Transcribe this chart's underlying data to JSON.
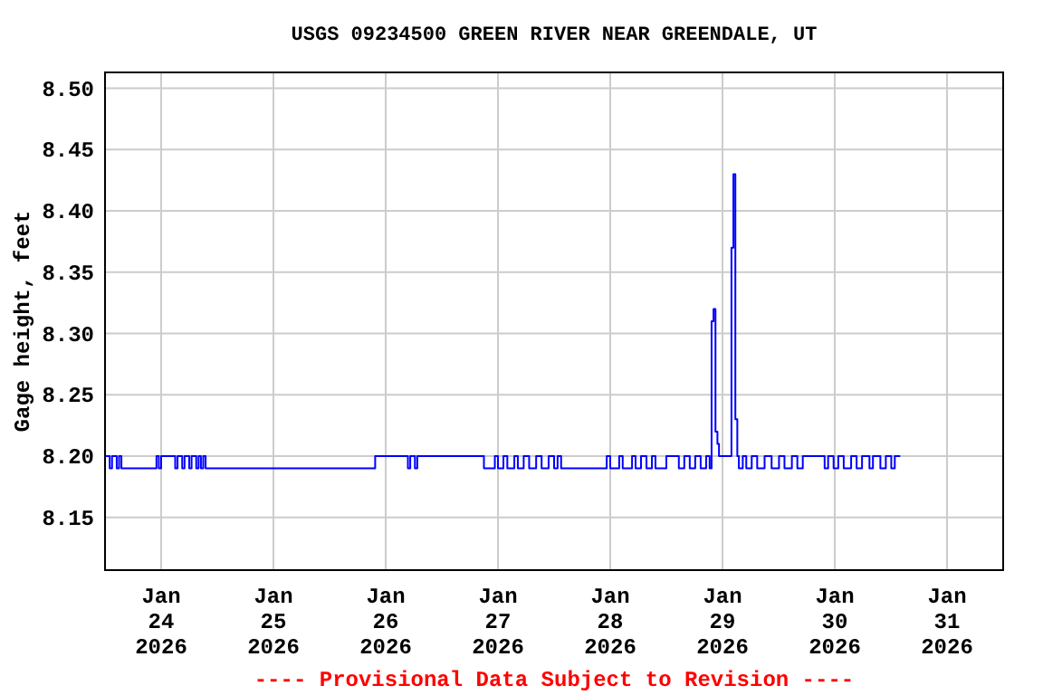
{
  "chart_data": {
    "type": "step",
    "title": "USGS 09234500 GREEN RIVER NEAR GREENDALE, UT",
    "ylabel": "Gage height, feet",
    "annotations": [
      "---- Provisional Data Subject to Revision ----"
    ],
    "xlim": [
      "2026-01-23T12:00",
      "2026-01-31T12:00"
    ],
    "xticks": [
      {
        "value": "2026-01-24",
        "label": "Jan\n24\n2026"
      },
      {
        "value": "2026-01-25",
        "label": "Jan\n25\n2026"
      },
      {
        "value": "2026-01-26",
        "label": "Jan\n26\n2026"
      },
      {
        "value": "2026-01-27",
        "label": "Jan\n27\n2026"
      },
      {
        "value": "2026-01-28",
        "label": "Jan\n28\n2026"
      },
      {
        "value": "2026-01-29",
        "label": "Jan\n29\n2026"
      },
      {
        "value": "2026-01-30",
        "label": "Jan\n30\n2026"
      },
      {
        "value": "2026-01-31",
        "label": "Jan\n31\n2026"
      }
    ],
    "ylim": [
      8.107,
      8.513
    ],
    "yticks": [
      {
        "value": 8.15,
        "label": "8.15"
      },
      {
        "value": 8.2,
        "label": "8.20"
      },
      {
        "value": 8.25,
        "label": "8.25"
      },
      {
        "value": 8.3,
        "label": "8.30"
      },
      {
        "value": 8.35,
        "label": "8.35"
      },
      {
        "value": 8.4,
        "label": "8.40"
      },
      {
        "value": 8.45,
        "label": "8.45"
      },
      {
        "value": 8.5,
        "label": "8.50"
      }
    ],
    "grid": true,
    "series": [
      {
        "color": "#0000ff",
        "x": [
          "2026-01-23T12:00",
          "2026-01-23T13:00",
          "2026-01-23T13:30",
          "2026-01-23T14:30",
          "2026-01-23T15:00",
          "2026-01-23T15:30",
          "2026-01-23T23:00",
          "2026-01-23T23:30",
          "2026-01-24T00:00",
          "2026-01-24T03:00",
          "2026-01-24T03:30",
          "2026-01-24T04:30",
          "2026-01-24T05:00",
          "2026-01-24T06:00",
          "2026-01-24T06:30",
          "2026-01-24T07:30",
          "2026-01-24T08:00",
          "2026-01-24T08:30",
          "2026-01-24T09:00",
          "2026-01-24T09:30",
          "2026-01-25T21:45",
          "2026-01-26T04:45",
          "2026-01-26T05:15",
          "2026-01-26T06:15",
          "2026-01-26T06:45",
          "2026-01-26T21:00",
          "2026-01-26T23:20",
          "2026-01-27T00:00",
          "2026-01-27T01:10",
          "2026-01-27T02:00",
          "2026-01-27T03:30",
          "2026-01-27T04:15",
          "2026-01-27T05:30",
          "2026-01-27T06:40",
          "2026-01-27T08:10",
          "2026-01-27T09:20",
          "2026-01-27T10:50",
          "2026-01-27T12:00",
          "2026-01-27T12:45",
          "2026-01-27T13:30",
          "2026-01-27T23:15",
          "2026-01-28T00:00",
          "2026-01-28T01:55",
          "2026-01-28T02:40",
          "2026-01-28T04:40",
          "2026-01-28T05:25",
          "2026-01-28T06:35",
          "2026-01-28T07:45",
          "2026-01-28T08:55",
          "2026-01-28T09:40",
          "2026-01-28T12:00",
          "2026-01-28T14:40",
          "2026-01-28T15:50",
          "2026-01-28T17:00",
          "2026-01-28T18:10",
          "2026-01-28T19:20",
          "2026-01-28T20:30",
          "2026-01-28T21:15",
          "2026-01-28T21:40",
          "2026-01-28T22:05",
          "2026-01-28T22:30",
          "2026-01-28T22:55",
          "2026-01-28T23:15",
          "2026-01-29T01:55",
          "2026-01-29T02:20",
          "2026-01-29T02:45",
          "2026-01-29T03:10",
          "2026-01-29T03:30",
          "2026-01-29T04:20",
          "2026-01-29T05:05",
          "2026-01-29T06:15",
          "2026-01-29T07:25",
          "2026-01-29T09:00",
          "2026-01-29T10:30",
          "2026-01-29T12:05",
          "2026-01-29T13:15",
          "2026-01-29T14:50",
          "2026-01-29T16:00",
          "2026-01-29T17:10",
          "2026-01-29T21:50",
          "2026-01-29T22:35",
          "2026-01-29T23:45",
          "2026-01-30T00:45",
          "2026-01-30T01:55",
          "2026-01-30T03:30",
          "2026-01-30T04:40",
          "2026-01-30T05:50",
          "2026-01-30T07:25",
          "2026-01-30T08:10",
          "2026-01-30T09:45",
          "2026-01-30T10:55",
          "2026-01-30T12:05",
          "2026-01-30T12:50",
          "2026-01-30T14:00"
        ],
        "values": [
          8.2,
          8.19,
          8.2,
          8.19,
          8.2,
          8.19,
          8.2,
          8.19,
          8.2,
          8.19,
          8.2,
          8.19,
          8.2,
          8.19,
          8.2,
          8.19,
          8.2,
          8.19,
          8.2,
          8.19,
          8.2,
          8.19,
          8.2,
          8.19,
          8.2,
          8.19,
          8.2,
          8.19,
          8.2,
          8.19,
          8.2,
          8.19,
          8.2,
          8.19,
          8.2,
          8.19,
          8.2,
          8.19,
          8.2,
          8.19,
          8.2,
          8.19,
          8.2,
          8.19,
          8.2,
          8.19,
          8.2,
          8.19,
          8.2,
          8.19,
          8.2,
          8.19,
          8.2,
          8.19,
          8.2,
          8.19,
          8.2,
          8.19,
          8.31,
          8.32,
          8.22,
          8.21,
          8.2,
          8.37,
          8.43,
          8.23,
          8.2,
          8.19,
          8.2,
          8.19,
          8.2,
          8.19,
          8.2,
          8.19,
          8.2,
          8.19,
          8.2,
          8.19,
          8.2,
          8.19,
          8.2,
          8.19,
          8.2,
          8.19,
          8.2,
          8.19,
          8.2,
          8.19,
          8.2,
          8.19,
          8.2,
          8.19,
          8.2,
          8.2
        ]
      }
    ]
  }
}
